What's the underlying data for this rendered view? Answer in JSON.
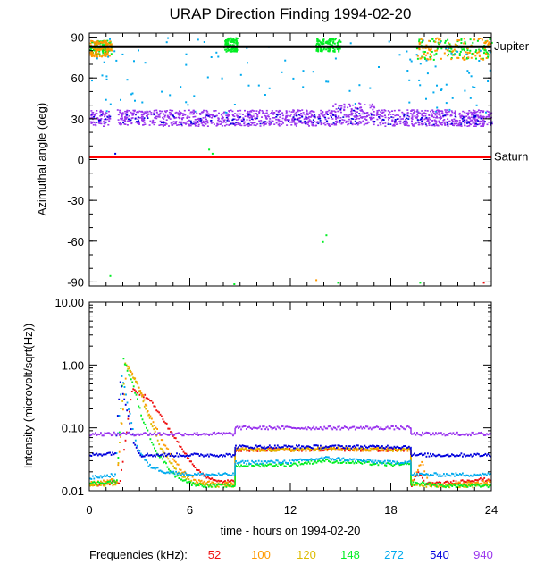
{
  "title": "URAP Direction Finding  1994-02-20",
  "chart_data": [
    {
      "type": "scatter",
      "name": "azimuth",
      "ylabel": "Azimuthal angle (deg)",
      "xlim": [
        0,
        24
      ],
      "ylim": [
        -93,
        93
      ],
      "yticks": [
        90,
        60,
        30,
        0,
        -30,
        -60,
        -90
      ],
      "ytick_labels": [
        "90",
        "60",
        "30",
        "0",
        "-30",
        "-60",
        "-90"
      ],
      "reference_lines": [
        {
          "label": "Jupiter",
          "y": 83,
          "color": "#000000"
        },
        {
          "label": "Saturn",
          "y": 2,
          "color": "#ff0000"
        }
      ],
      "bands": [
        {
          "freq": "940",
          "x": [
            0,
            24
          ],
          "y_center": 31,
          "y_spread": 6
        },
        {
          "freq": "540",
          "x": [
            0,
            24
          ],
          "y_center": 30,
          "y_spread": 4
        }
      ],
      "clusters": [
        {
          "freq": "148",
          "x": [
            0,
            1.3
          ],
          "y": [
            78,
            88
          ]
        },
        {
          "freq": "100",
          "x": [
            0,
            1.3
          ],
          "y": [
            76,
            88
          ]
        },
        {
          "freq": "148",
          "x": [
            8,
            8.8
          ],
          "y": [
            80,
            90
          ]
        },
        {
          "freq": "148",
          "x": [
            13.5,
            15
          ],
          "y": [
            80,
            90
          ]
        },
        {
          "freq": "148",
          "x": [
            19.5,
            24
          ],
          "y": [
            74,
            90
          ]
        },
        {
          "freq": "100",
          "x": [
            19.5,
            24
          ],
          "y": [
            74,
            90
          ]
        },
        {
          "freq": "272",
          "x": [
            0,
            24
          ],
          "y": [
            35,
            90
          ]
        }
      ]
    },
    {
      "type": "line",
      "name": "intensity",
      "xlabel": "time - hours on 1994-02-20",
      "ylabel": "Intensity (microvolt/sqrt(Hz))",
      "xlim": [
        0,
        24
      ],
      "xticks": [
        0,
        6,
        12,
        18,
        24
      ],
      "xtick_labels": [
        "0",
        "6",
        "12",
        "18",
        "24"
      ],
      "yscale": "log",
      "ylim": [
        0.01,
        10
      ],
      "yticks": [
        10,
        1,
        0.1,
        0.01
      ],
      "ytick_labels": [
        "10.00",
        "1.00",
        "0.10",
        "0.01"
      ],
      "series": [
        {
          "name": "52",
          "x": [
            0,
            1.8,
            2.5,
            3.5,
            4.5,
            5.5,
            6.5,
            7.5,
            8.7,
            8.7,
            10,
            12,
            14,
            16,
            18,
            19.2,
            19.2,
            19.6,
            20,
            21,
            22,
            23,
            24
          ],
          "y": [
            0.012,
            0.014,
            0.4,
            0.3,
            0.12,
            0.045,
            0.02,
            0.014,
            0.014,
            0.045,
            0.045,
            0.045,
            0.046,
            0.045,
            0.045,
            0.045,
            0.012,
            0.02,
            0.013,
            0.013,
            0.014,
            0.015,
            0.015
          ]
        },
        {
          "name": "100",
          "x": [
            0,
            1.6,
            2.2,
            3,
            3.6,
            4.5,
            5.5,
            6.5,
            7.5,
            8.7,
            8.7,
            12,
            14,
            18,
            19.2,
            19.2,
            19.8,
            20.2,
            21,
            22,
            23,
            24
          ],
          "y": [
            0.013,
            0.015,
            1.0,
            0.4,
            0.15,
            0.05,
            0.02,
            0.014,
            0.013,
            0.013,
            0.045,
            0.045,
            0.046,
            0.045,
            0.045,
            0.014,
            0.03,
            0.013,
            0.012,
            0.013,
            0.013,
            0.014
          ]
        },
        {
          "name": "120",
          "x": [
            0,
            1.6,
            2.1,
            2.8,
            3.4,
            4.2,
            5.2,
            6.2,
            7.2,
            8.7,
            8.7,
            12,
            14,
            18,
            19.2,
            19.2,
            20,
            21,
            22,
            23,
            24
          ],
          "y": [
            0.012,
            0.013,
            1.1,
            0.5,
            0.18,
            0.05,
            0.02,
            0.013,
            0.012,
            0.012,
            0.045,
            0.045,
            0.047,
            0.045,
            0.045,
            0.013,
            0.012,
            0.012,
            0.012,
            0.012,
            0.013
          ]
        },
        {
          "name": "148",
          "x": [
            0,
            1.6,
            2.0,
            2.6,
            3.2,
            4.0,
            5.0,
            6.0,
            7.0,
            8.7,
            8.7,
            12,
            14,
            18,
            19.2,
            19.2,
            20,
            21,
            22,
            23,
            24
          ],
          "y": [
            0.013,
            0.014,
            1.2,
            0.45,
            0.12,
            0.04,
            0.018,
            0.013,
            0.012,
            0.012,
            0.025,
            0.026,
            0.03,
            0.026,
            0.026,
            0.013,
            0.013,
            0.012,
            0.012,
            0.012,
            0.012
          ]
        },
        {
          "name": "272",
          "x": [
            0,
            1.5,
            1.9,
            2.3,
            2.8,
            3.5,
            4.5,
            6,
            8.7,
            8.7,
            12,
            14,
            18,
            19.2,
            19.2,
            24
          ],
          "y": [
            0.016,
            0.018,
            0.7,
            0.2,
            0.05,
            0.025,
            0.02,
            0.018,
            0.018,
            0.028,
            0.029,
            0.033,
            0.028,
            0.029,
            0.018,
            0.018
          ]
        },
        {
          "name": "540",
          "x": [
            0,
            1.5,
            1.8,
            2.2,
            2.6,
            3,
            3.5,
            8.7,
            8.7,
            12,
            18,
            19.2,
            19.2,
            24
          ],
          "y": [
            0.037,
            0.04,
            0.55,
            0.2,
            0.06,
            0.037,
            0.037,
            0.037,
            0.05,
            0.05,
            0.05,
            0.05,
            0.037,
            0.037
          ]
        },
        {
          "name": "940",
          "x": [
            0,
            8.7,
            8.7,
            19.2,
            19.2,
            24
          ],
          "y": [
            0.08,
            0.08,
            0.1,
            0.1,
            0.08,
            0.08
          ]
        }
      ]
    }
  ],
  "legend": {
    "label": "Frequencies (kHz):",
    "items": [
      {
        "label": "52",
        "color": "#ee1111"
      },
      {
        "label": "100",
        "color": "#ff9900"
      },
      {
        "label": "120",
        "color": "#ddbb00"
      },
      {
        "label": "148",
        "color": "#00ee22"
      },
      {
        "label": "272",
        "color": "#00aaee"
      },
      {
        "label": "540",
        "color": "#0000dd"
      },
      {
        "label": "940",
        "color": "#9933ee"
      }
    ]
  }
}
